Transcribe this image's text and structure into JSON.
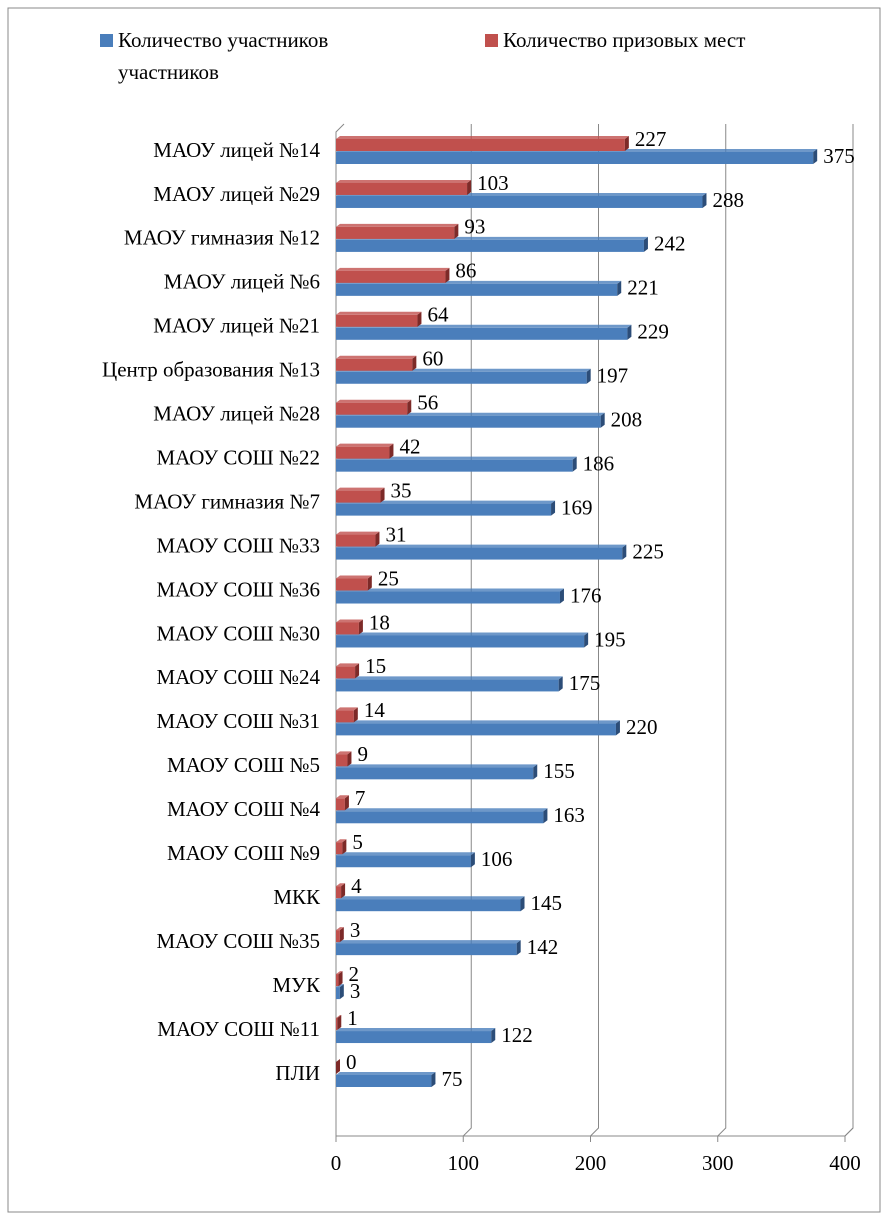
{
  "chart_data": {
    "type": "bar",
    "orientation": "horizontal",
    "categories": [
      "МАОУ лицей №14",
      "МАОУ лицей №29",
      "МАОУ гимназия №12",
      "МАОУ лицей №6",
      "МАОУ лицей №21",
      "Центр образования №13",
      "МАОУ лицей №28",
      "МАОУ СОШ №22",
      "МАОУ гимназия №7",
      "МАОУ СОШ №33",
      "МАОУ СОШ №36",
      "МАОУ СОШ №30",
      "МАОУ СОШ №24",
      "МАОУ СОШ №31",
      "МАОУ СОШ №5",
      "МАОУ СОШ №4",
      "МАОУ СОШ №9",
      "МКК",
      "МАОУ СОШ №35",
      "МУК",
      "МАОУ СОШ  №11",
      "ПЛИ"
    ],
    "series": [
      {
        "name": "Количество участников участников",
        "color": "#4a7ebb",
        "values": [
          375,
          288,
          242,
          221,
          229,
          197,
          208,
          186,
          169,
          225,
          176,
          195,
          175,
          220,
          155,
          163,
          106,
          145,
          142,
          3,
          122,
          75
        ]
      },
      {
        "name": "Количество призовых мест",
        "color": "#c0504d",
        "values": [
          227,
          103,
          93,
          86,
          64,
          60,
          56,
          42,
          35,
          31,
          25,
          18,
          15,
          14,
          9,
          7,
          5,
          4,
          3,
          2,
          1,
          0
        ]
      }
    ],
    "xlim": [
      0,
      400
    ],
    "xticks": [
      0,
      100,
      200,
      300,
      400
    ],
    "grid": true,
    "legend": "top"
  }
}
